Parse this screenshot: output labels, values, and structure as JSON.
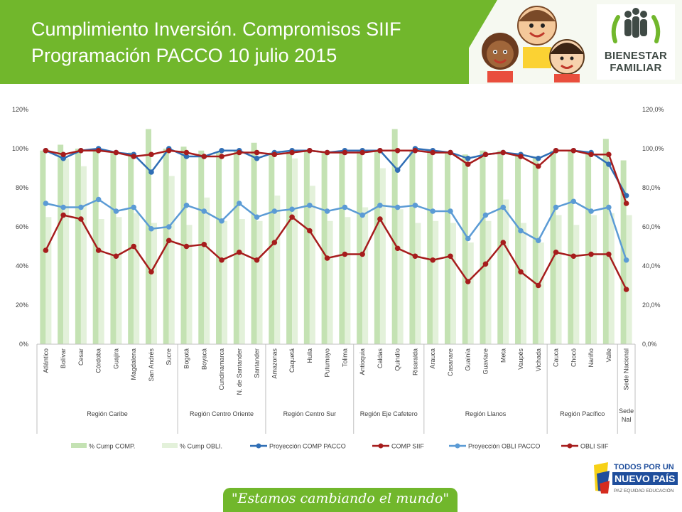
{
  "header": {
    "title_line1": "Cumplimiento Inversión. Compromisos SIIF",
    "title_line2": "Programación PACCO 10 julio 2015",
    "logo_text_line1": "BIENESTAR",
    "logo_text_line2": "FAMILIAR",
    "colors": {
      "brand_green": "#71b72c",
      "logo_dark": "#3f4a45"
    }
  },
  "footer": {
    "slogan": "\"Estamos cambiando el mundo\"",
    "gov_logo_line1": "TODOS POR UN",
    "gov_logo_line2": "NUEVO PAÍS",
    "gov_logo_line3": "PAZ  EQUIDAD  EDUCACIÓN"
  },
  "chart_data": {
    "type": "bar",
    "categories": [
      "Atlántico",
      "Bolívar",
      "Cesar",
      "Córdoba",
      "Guajira",
      "Magdalena",
      "San Andrés",
      "Sucre",
      "Bogotá",
      "Boyacá",
      "Cundinamarca",
      "N. de Santander",
      "Santander",
      "Amazonas",
      "Caquetá",
      "Huila",
      "Putumayo",
      "Tolima",
      "Antioquia",
      "Caldas",
      "Quindío",
      "Risaralda",
      "Arauca",
      "Casanare",
      "Guainía",
      "Guaviare",
      "Meta",
      "Vaupés",
      "Vichada",
      "Cauca",
      "Chocó",
      "Nariño",
      "Valle",
      "Sede Nacional"
    ],
    "groups": [
      {
        "label": "Región Caribe",
        "count": 8
      },
      {
        "label": "Región Centro Oriente",
        "count": 5
      },
      {
        "label": "Región Centro Sur",
        "count": 5
      },
      {
        "label": "Región Eje Cafetero",
        "count": 4
      },
      {
        "label": "Región Llanos",
        "count": 7
      },
      {
        "label": "Región Pacífico",
        "count": 4
      },
      {
        "label": "Sede Nal",
        "count": 1
      }
    ],
    "y_left_ticks": [
      "0%",
      "20%",
      "40%",
      "60%",
      "80%",
      "100%",
      "120%"
    ],
    "y_right_ticks": [
      "0,0%",
      "20,0%",
      "40,0%",
      "60,0%",
      "80,0%",
      "100,0%",
      "120,0%"
    ],
    "ylim": [
      0,
      120
    ],
    "legend_position": "bottom",
    "grid": false,
    "series": [
      {
        "name": "% Cump COMP.",
        "kind": "bar",
        "color": "#c4e2b3",
        "values": [
          99,
          102,
          100,
          100,
          98,
          98,
          110,
          100,
          101,
          99,
          98,
          99,
          103,
          98,
          98,
          99,
          98,
          98,
          99,
          99,
          110,
          99,
          99,
          98,
          97,
          99,
          99,
          97,
          96,
          99,
          99,
          98,
          105,
          94
        ]
      },
      {
        "name": "% Cump OBLI.",
        "kind": "bar",
        "color": "#e3f1da",
        "values": [
          65,
          95,
          91,
          64,
          65,
          67,
          62,
          86,
          61,
          75,
          63,
          64,
          63,
          76,
          95,
          81,
          63,
          65,
          70,
          90,
          69,
          62,
          63,
          62,
          52,
          63,
          74,
          62,
          52,
          66,
          61,
          66,
          67,
          66
        ]
      },
      {
        "name": "Proyección COMP PACCO",
        "kind": "line",
        "color": "#2f6eb5",
        "values": [
          99,
          95,
          99,
          100,
          98,
          97,
          88,
          100,
          96,
          96,
          99,
          99,
          95,
          98,
          99,
          99,
          98,
          99,
          99,
          99,
          89,
          100,
          99,
          98,
          95,
          97,
          98,
          97,
          95,
          99,
          99,
          98,
          92,
          76
        ]
      },
      {
        "name": "COMP SIIF",
        "kind": "line",
        "color": "#a61c1c",
        "values": [
          99,
          97,
          99,
          99,
          98,
          96,
          97,
          99,
          98,
          96,
          96,
          98,
          98,
          97,
          98,
          99,
          98,
          98,
          98,
          99,
          99,
          99,
          98,
          98,
          92,
          97,
          98,
          96,
          91,
          99,
          99,
          97,
          97,
          72
        ]
      },
      {
        "name": "Proyección OBLI PACCO",
        "kind": "line",
        "color": "#5b9bd5",
        "values": [
          72,
          70,
          70,
          74,
          68,
          70,
          59,
          60,
          71,
          68,
          63,
          72,
          65,
          68,
          69,
          71,
          68,
          70,
          66,
          71,
          70,
          71,
          68,
          68,
          54,
          66,
          70,
          58,
          53,
          70,
          73,
          68,
          70,
          43
        ]
      },
      {
        "name": "OBLI SIIF",
        "kind": "line",
        "color": "#a61c1c",
        "values": [
          48,
          66,
          64,
          48,
          45,
          50,
          37,
          53,
          50,
          51,
          43,
          47,
          43,
          52,
          65,
          58,
          44,
          46,
          46,
          64,
          49,
          45,
          43,
          45,
          32,
          41,
          52,
          37,
          30,
          47,
          45,
          46,
          46,
          28
        ]
      }
    ]
  }
}
